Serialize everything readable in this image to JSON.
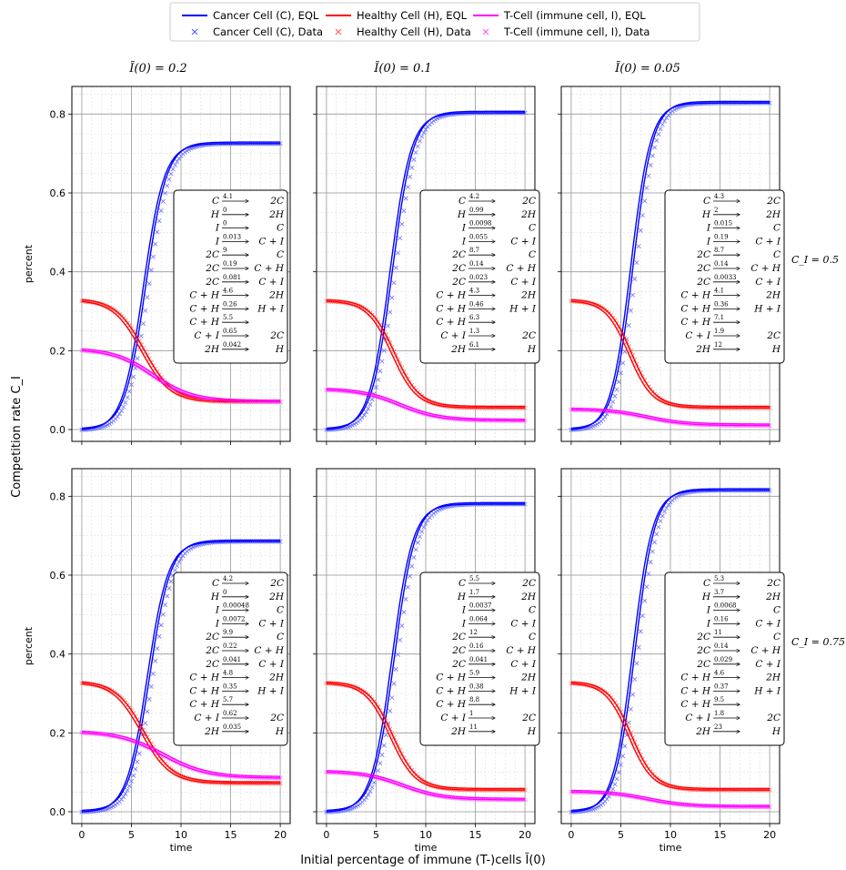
{
  "figure": {
    "x_supertitle": "Initial percentage of immune (T-)cells Ĩ(0)",
    "y_supertitle": "Competition rate C_I",
    "col_titles": [
      "Ĩ(0) = 0.2",
      "Ĩ(0) = 0.1",
      "Ĩ(0) = 0.05"
    ],
    "row_labels": [
      "C_I = 0.5",
      "C_I = 0.75"
    ],
    "panel_xlabel": "time",
    "panel_ylabel": "percent"
  },
  "legend": {
    "entries": [
      {
        "label": "Cancer Cell (C), EQL",
        "color": "#0000ff",
        "marker": "line"
      },
      {
        "label": "Healthy Cell (H), EQL",
        "color": "#ff0000",
        "marker": "line"
      },
      {
        "label": "T-Cell (immune cell, I), EQL",
        "color": "#ff00ff",
        "marker": "line"
      },
      {
        "label": "Cancer Cell (C), Data",
        "color": "#4a52ff",
        "marker": "x"
      },
      {
        "label": "Healthy Cell (H), Data",
        "color": "#ff5050",
        "marker": "x"
      },
      {
        "label": "T-Cell (immune cell, I), Data",
        "color": "#ff50ff",
        "marker": "x"
      }
    ],
    "placement": "top-center"
  },
  "reactions": {
    "lhs": [
      "C",
      "H",
      "I",
      "I",
      "2C",
      "2C",
      "2C",
      "C + H",
      "C + H",
      "C + H",
      "C + I",
      "2H"
    ],
    "rhs": [
      "2C",
      "2H",
      "C",
      "C + I",
      "C",
      "C + H",
      "C + I",
      "2H",
      "H + I",
      "",
      "2C",
      "H"
    ]
  },
  "chart_data": [
    {
      "type": "line",
      "row": 0,
      "col": 0,
      "I0": 0.2,
      "C_I": 0.5,
      "xlim": [
        -1,
        21
      ],
      "ylim": [
        -0.03,
        0.87
      ],
      "xticks": [
        0,
        5,
        10,
        15,
        20
      ],
      "yticks": [
        0.0,
        0.2,
        0.4,
        0.6,
        0.8
      ],
      "grid": true,
      "xlabel": "",
      "ylabel": "percent",
      "rates": [
        "4.1",
        "0",
        "0",
        "0.013",
        "9",
        "0.19",
        "0.081",
        "4.6",
        "0.26",
        "5.5",
        "0.65",
        "0.042"
      ],
      "series": {
        "C": {
          "C0": 0.0,
          "Cf": 0.725,
          "mid": 6.2,
          "k": 0.95
        },
        "H": {
          "H0": 0.325,
          "Hf": 0.07,
          "mid": 6.0,
          "k": 0.7
        },
        "I": {
          "I0": 0.2,
          "If": 0.07,
          "mid": 7.0,
          "k": 0.5
        }
      }
    },
    {
      "type": "line",
      "row": 0,
      "col": 1,
      "I0": 0.1,
      "C_I": 0.5,
      "xlim": [
        -1,
        21
      ],
      "ylim": [
        -0.03,
        0.87
      ],
      "xticks": [
        0,
        5,
        10,
        15,
        20
      ],
      "yticks": [
        0.0,
        0.2,
        0.4,
        0.6,
        0.8
      ],
      "grid": true,
      "xlabel": "",
      "ylabel": "",
      "rates": [
        "4.2",
        "0.99",
        "0.0098",
        "0.055",
        "8.7",
        "0.14",
        "0.023",
        "4.3",
        "0.46",
        "6.3",
        "1.3",
        "6.1"
      ],
      "series": {
        "C": {
          "C0": 0.0,
          "Cf": 0.803,
          "mid": 6.4,
          "k": 0.95
        },
        "H": {
          "H0": 0.325,
          "Hf": 0.055,
          "mid": 6.6,
          "k": 0.8
        },
        "I": {
          "I0": 0.1,
          "If": 0.022,
          "mid": 7.2,
          "k": 0.5
        }
      }
    },
    {
      "type": "line",
      "row": 0,
      "col": 2,
      "I0": 0.05,
      "C_I": 0.5,
      "xlim": [
        -1,
        21
      ],
      "ylim": [
        -0.03,
        0.87
      ],
      "xticks": [
        0,
        5,
        10,
        15,
        20
      ],
      "yticks": [
        0.0,
        0.2,
        0.4,
        0.6,
        0.8
      ],
      "grid": true,
      "xlabel": "",
      "ylabel": "",
      "rates": [
        "4.3",
        "2",
        "0.015",
        "0.19",
        "8.7",
        "0.14",
        "0.0033",
        "4.1",
        "0.36",
        "7.1",
        "1.9",
        "12"
      ],
      "series": {
        "C": {
          "C0": 0.0,
          "Cf": 0.828,
          "mid": 6.0,
          "k": 1.0
        },
        "H": {
          "H0": 0.325,
          "Hf": 0.055,
          "mid": 5.8,
          "k": 0.85
        },
        "I": {
          "I0": 0.05,
          "If": 0.01,
          "mid": 7.5,
          "k": 0.5
        }
      }
    },
    {
      "type": "line",
      "row": 1,
      "col": 0,
      "I0": 0.2,
      "C_I": 0.75,
      "xlim": [
        -1,
        21
      ],
      "ylim": [
        -0.03,
        0.87
      ],
      "xticks": [
        0,
        5,
        10,
        15,
        20
      ],
      "yticks": [
        0.0,
        0.2,
        0.4,
        0.6,
        0.8
      ],
      "grid": true,
      "xlabel": "time",
      "ylabel": "percent",
      "rates": [
        "4.2",
        "0",
        "0.00048",
        "0.0072",
        "9.9",
        "0.22",
        "0.041",
        "4.8",
        "0.35",
        "5.7",
        "0.62",
        "0.035"
      ],
      "series": {
        "C": {
          "C0": 0.0,
          "Cf": 0.685,
          "mid": 6.6,
          "k": 0.95
        },
        "H": {
          "H0": 0.325,
          "Hf": 0.072,
          "mid": 6.0,
          "k": 0.7
        },
        "I": {
          "I0": 0.2,
          "If": 0.085,
          "mid": 8.0,
          "k": 0.45
        }
      }
    },
    {
      "type": "line",
      "row": 1,
      "col": 1,
      "I0": 0.1,
      "C_I": 0.75,
      "xlim": [
        -1,
        21
      ],
      "ylim": [
        -0.03,
        0.87
      ],
      "xticks": [
        0,
        5,
        10,
        15,
        20
      ],
      "yticks": [
        0.0,
        0.2,
        0.4,
        0.6,
        0.8
      ],
      "grid": true,
      "xlabel": "time",
      "ylabel": "",
      "rates": [
        "5.5",
        "1.7",
        "0.0037",
        "0.064",
        "12",
        "0.16",
        "0.041",
        "5.9",
        "0.38",
        "8.8",
        "1",
        "11"
      ],
      "series": {
        "C": {
          "C0": 0.0,
          "Cf": 0.78,
          "mid": 6.6,
          "k": 0.95
        },
        "H": {
          "H0": 0.325,
          "Hf": 0.055,
          "mid": 6.4,
          "k": 0.8
        },
        "I": {
          "I0": 0.1,
          "If": 0.03,
          "mid": 7.5,
          "k": 0.5
        }
      }
    },
    {
      "type": "line",
      "row": 1,
      "col": 2,
      "I0": 0.05,
      "C_I": 0.75,
      "xlim": [
        -1,
        21
      ],
      "ylim": [
        -0.03,
        0.87
      ],
      "xticks": [
        0,
        5,
        10,
        15,
        20
      ],
      "yticks": [
        0.0,
        0.2,
        0.4,
        0.6,
        0.8
      ],
      "grid": true,
      "xlabel": "time",
      "ylabel": "",
      "rates": [
        "5.3",
        "3.7",
        "0.0068",
        "0.16",
        "11",
        "0.14",
        "0.029",
        "4.6",
        "0.37",
        "9.5",
        "1.8",
        "23"
      ],
      "series": {
        "C": {
          "C0": 0.0,
          "Cf": 0.815,
          "mid": 6.2,
          "k": 1.0
        },
        "H": {
          "H0": 0.325,
          "Hf": 0.055,
          "mid": 5.8,
          "k": 0.85
        },
        "I": {
          "I0": 0.05,
          "If": 0.012,
          "mid": 7.5,
          "k": 0.5
        }
      }
    }
  ]
}
